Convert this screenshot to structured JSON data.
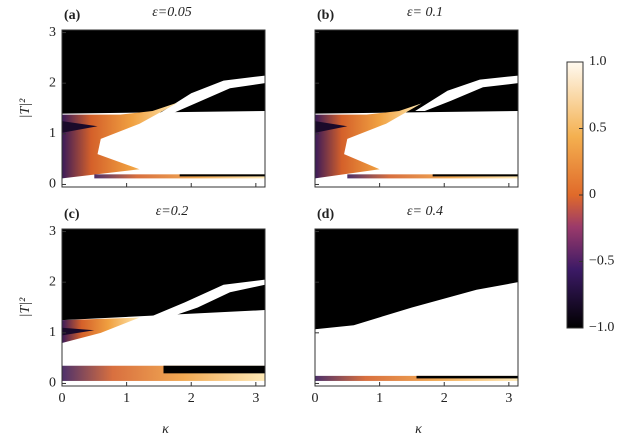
{
  "chart_data": [
    {
      "type": "heatmap",
      "panel_label": "(a)",
      "title": "ε=0.05",
      "ylabel": "|T|²",
      "xlim": [
        0,
        3.1416
      ],
      "xticks": [
        0,
        1,
        2,
        3
      ],
      "ylim": [
        -0.05,
        3.05
      ],
      "yticks": [
        0,
        1,
        2,
        3
      ]
    },
    {
      "type": "heatmap",
      "panel_label": "(b)",
      "title": "ε= 0.1",
      "xlim": [
        0,
        3.1416
      ],
      "xticks": [
        0,
        1,
        2,
        3
      ],
      "ylim": [
        -0.05,
        3.05
      ],
      "yticks": [
        0,
        1,
        2,
        3
      ]
    },
    {
      "type": "heatmap",
      "panel_label": "(c)",
      "title": "ε=0.2",
      "ylabel": "|T|²",
      "xlabel": "κ",
      "xlim": [
        0,
        3.1416
      ],
      "xticks": [
        0,
        1,
        2,
        3
      ],
      "ylim": [
        -0.05,
        3.05
      ],
      "yticks": [
        0,
        1,
        2,
        3
      ]
    },
    {
      "type": "heatmap",
      "panel_label": "(d)",
      "title": "ε= 0.4",
      "xlabel": "κ",
      "xlim": [
        0,
        3.1416
      ],
      "xticks": [
        0,
        1,
        2,
        3
      ],
      "ylim": [
        -0.05,
        3.05
      ],
      "yticks": [
        0,
        1,
        2,
        3
      ]
    }
  ],
  "colorbar": {
    "lim": [
      -1,
      1
    ],
    "ticks": [
      {
        "value": -1,
        "label": "−1.0"
      },
      {
        "value": -0.5,
        "label": "−0.5"
      },
      0,
      0.5,
      {
        "value": 1,
        "label": "1.0"
      }
    ]
  }
}
